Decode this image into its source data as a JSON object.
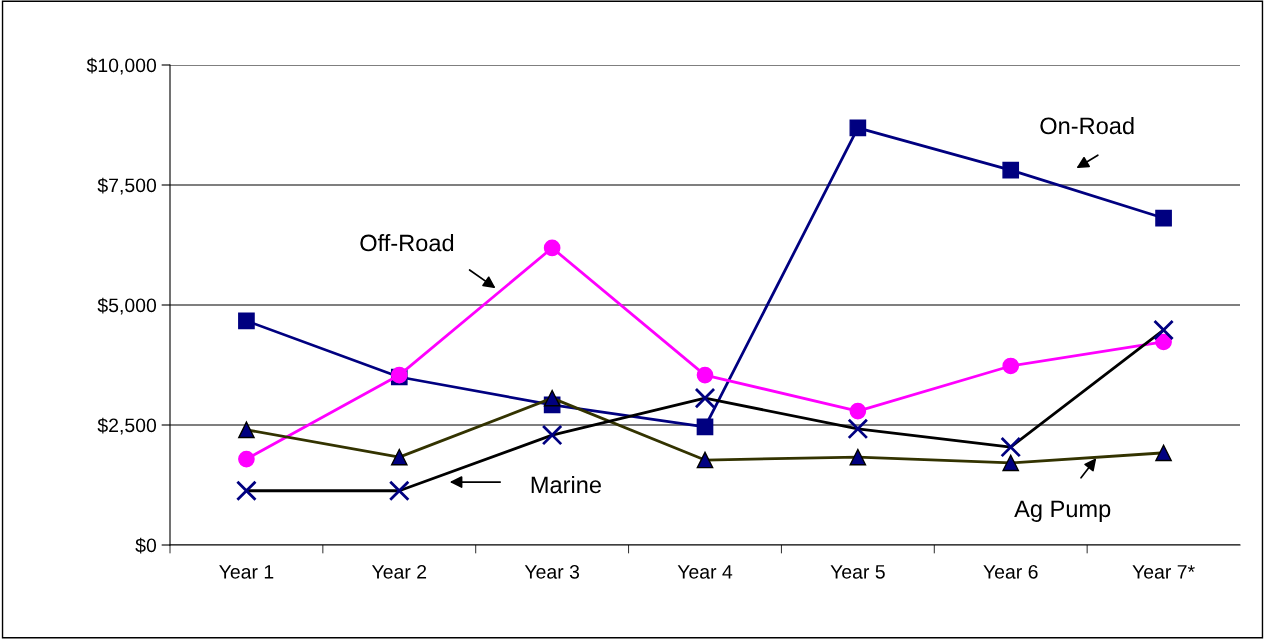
{
  "chart_data": {
    "type": "line",
    "categories": [
      "Year 1",
      "Year 2",
      "Year 3",
      "Year 4",
      "Year 5",
      "Year 6",
      "Year 7*"
    ],
    "series": [
      {
        "name": "On-Road",
        "color": "#000080",
        "marker": "square",
        "values": [
          4670,
          3500,
          2920,
          2460,
          8690,
          7810,
          6810
        ]
      },
      {
        "name": "Off-Road",
        "color": "#ff00ff",
        "marker": "circle",
        "values": [
          1790,
          3540,
          6190,
          3540,
          2790,
          3730,
          4230
        ]
      },
      {
        "name": "Ag Pump",
        "color": "#333300",
        "marker": "triangle",
        "values": [
          2400,
          1830,
          3060,
          1770,
          1830,
          1710,
          1920
        ]
      },
      {
        "name": "Marine",
        "color": "#000000",
        "marker": "cross",
        "values": [
          1130,
          1130,
          2290,
          3060,
          2420,
          2040,
          4480
        ]
      }
    ],
    "ylim": [
      0,
      10000
    ],
    "yticks": [
      {
        "value": 0,
        "label": "$0"
      },
      {
        "value": 2500,
        "label": "$2,500"
      },
      {
        "value": 5000,
        "label": "$5,000"
      },
      {
        "value": 7500,
        "label": "$7,500"
      },
      {
        "value": 10000,
        "label": "$10,000"
      }
    ],
    "grid": "y",
    "line_style": "solid"
  }
}
